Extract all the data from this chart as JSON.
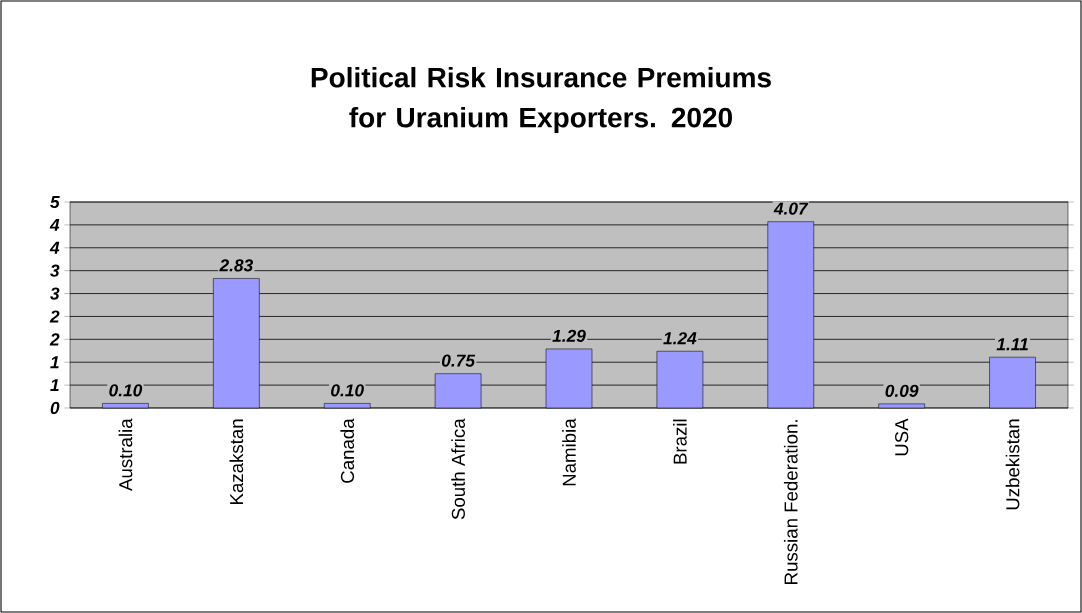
{
  "chart_data": {
    "type": "bar",
    "title": "Political Risk Insurance Premiums for Uranium Exporters. 2020",
    "categories": [
      "Australia",
      "Kazakstan",
      "Canada",
      "South Africa",
      "Namibia",
      "Brazil",
      "Russian Federation.",
      "USA",
      "Uzbekistan"
    ],
    "values": [
      0.1,
      2.83,
      0.1,
      0.75,
      1.29,
      1.24,
      4.07,
      0.09,
      1.11
    ],
    "value_labels": [
      "0.10",
      "2.83",
      "0.10",
      "0.75",
      "1.29",
      "1.24",
      "4.07",
      "0.09",
      "1.11"
    ],
    "color": "#9999ff",
    "ylim": [
      0,
      4.5
    ],
    "yticks": [
      0,
      {
        "value": 0.5,
        "label": "1"
      },
      1,
      {
        "value": 1.5,
        "label": "2"
      },
      2,
      {
        "value": 2.5,
        "label": "3"
      },
      3,
      {
        "value": 3.5,
        "label": "4"
      },
      4,
      {
        "value": 4.5,
        "label": "5"
      }
    ],
    "grid": "y"
  }
}
